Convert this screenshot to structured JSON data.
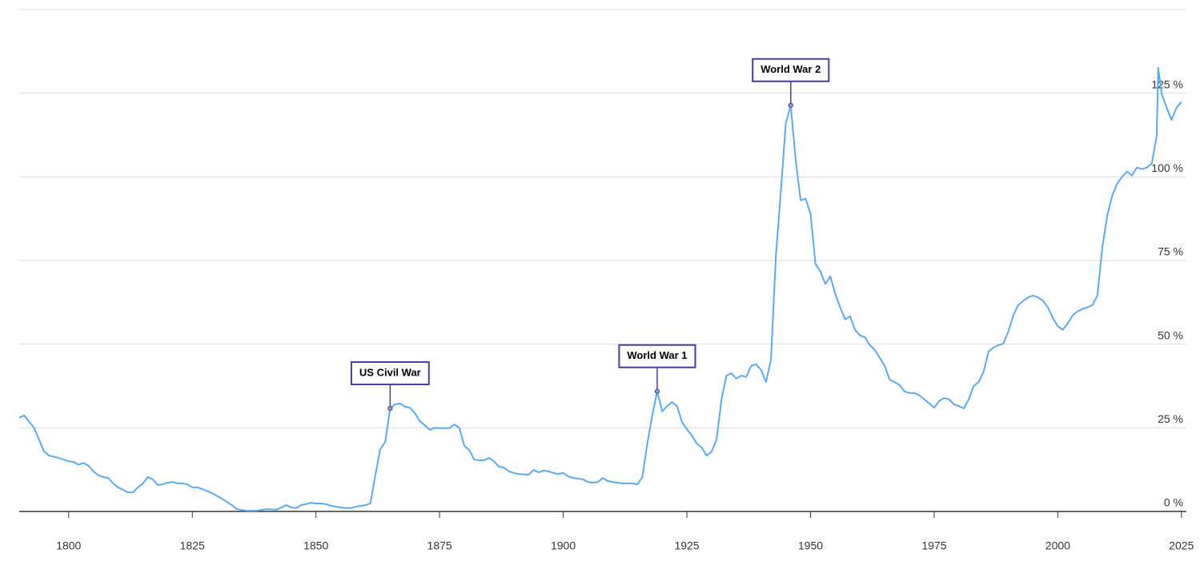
{
  "chart_data": {
    "type": "line",
    "x": [
      1790,
      1791,
      1793,
      1795,
      1796,
      1798,
      1800,
      1801,
      1802,
      1803,
      1804,
      1805,
      1806,
      1807,
      1808,
      1809,
      1810,
      1812,
      1813,
      1814,
      1815,
      1816,
      1817,
      1818,
      1819,
      1820,
      1821,
      1822,
      1823,
      1824,
      1825,
      1826,
      1827,
      1829,
      1831,
      1833,
      1834,
      1836,
      1838,
      1840,
      1842,
      1843,
      1844,
      1845,
      1846,
      1847,
      1848,
      1849,
      1850,
      1851,
      1852,
      1853,
      1855,
      1856,
      1857,
      1858,
      1860,
      1861,
      1862,
      1863,
      1864,
      1865,
      1866,
      1867,
      1868,
      1869,
      1870,
      1871,
      1872,
      1873,
      1874,
      1875,
      1876,
      1877,
      1878,
      1879,
      1880,
      1881,
      1882,
      1883,
      1884,
      1885,
      1886,
      1887,
      1888,
      1889,
      1890,
      1891,
      1893,
      1894,
      1895,
      1896,
      1897,
      1898,
      1899,
      1900,
      1901,
      1902,
      1904,
      1905,
      1906,
      1907,
      1908,
      1909,
      1910,
      1911,
      1912,
      1913,
      1914,
      1915,
      1916,
      1917,
      1918,
      1919,
      1920,
      1921,
      1922,
      1923,
      1924,
      1925,
      1926,
      1927,
      1928,
      1929,
      1930,
      1931,
      1932,
      1933,
      1934,
      1935,
      1936,
      1937,
      1938,
      1939,
      1940,
      1941,
      1942,
      1943,
      1944,
      1945,
      1946,
      1947,
      1948,
      1949,
      1950,
      1951,
      1952,
      1953,
      1954,
      1955,
      1956,
      1957,
      1958,
      1959,
      1960,
      1961,
      1962,
      1963,
      1964,
      1965,
      1966,
      1967,
      1968,
      1969,
      1970,
      1971,
      1972,
      1973,
      1974,
      1975,
      1976,
      1977,
      1978,
      1979,
      1980,
      1981,
      1982,
      1983,
      1984,
      1985,
      1986,
      1987,
      1988,
      1989,
      1990,
      1991,
      1992,
      1993,
      1994,
      1995,
      1996,
      1997,
      1998,
      1999,
      2000,
      2001,
      2002,
      2003,
      2004,
      2005,
      2006,
      2007,
      2008,
      2009,
      2010,
      2011,
      2012,
      2013,
      2014,
      2015,
      2016,
      2017,
      2018,
      2019,
      2020,
      2020.3,
      2021,
      2022,
      2023,
      2024,
      2025
    ],
    "series": [
      {
        "color": "#5aaaee",
        "values": [
          28,
          28.7,
          25,
          18,
          16.7,
          16,
          15,
          14.8,
          14,
          14.5,
          13.7,
          12,
          10.8,
          10.3,
          10,
          8.4,
          7.2,
          5.7,
          5.7,
          7.2,
          8.4,
          10.3,
          9.6,
          7.9,
          8.1,
          8.6,
          8.8,
          8.4,
          8.4,
          8.1,
          7.2,
          7.2,
          6.7,
          5.5,
          3.8,
          1.9,
          0.7,
          0.2,
          0.2,
          0.7,
          0.5,
          1.2,
          1.9,
          1.2,
          1,
          1.9,
          2.2,
          2.6,
          2.4,
          2.4,
          2.2,
          1.7,
          1.2,
          1,
          1,
          1.4,
          1.9,
          2.4,
          10.8,
          18.6,
          20.8,
          30.8,
          32,
          32.3,
          31.3,
          31,
          29.4,
          27,
          25.8,
          24.4,
          25,
          24.9,
          24.9,
          24.9,
          26,
          25,
          19.6,
          18.4,
          15.5,
          15.3,
          15.3,
          16,
          15,
          13.4,
          13.1,
          12,
          11.5,
          11.2,
          11,
          12.4,
          11.7,
          12.2,
          12,
          11.5,
          11.2,
          11.5,
          10.5,
          10,
          9.6,
          8.8,
          8.6,
          8.8,
          10,
          9.1,
          8.8,
          8.6,
          8.4,
          8.4,
          8.4,
          8.1,
          10.3,
          20.3,
          28.7,
          35.9,
          29.9,
          31.5,
          32.7,
          31.5,
          26.8,
          24.6,
          22.7,
          20.3,
          19.1,
          16.7,
          17.9,
          21.5,
          33.5,
          40.6,
          41.3,
          39.7,
          40.6,
          40.2,
          43.5,
          44,
          42.3,
          38.7,
          45.4,
          76.5,
          95.6,
          116,
          121.4,
          105,
          93,
          93.5,
          89,
          74,
          71.7,
          68,
          70.3,
          65,
          61,
          57.4,
          58.3,
          54.3,
          52.6,
          52.1,
          49.7,
          48.3,
          45.9,
          43.5,
          39.4,
          38.7,
          37.8,
          35.9,
          35.4,
          35.4,
          34.7,
          33.5,
          32.3,
          31,
          33,
          33.9,
          33.5,
          32,
          31.5,
          30.8,
          33.5,
          37.5,
          38.7,
          41.8,
          47.8,
          49,
          49.7,
          50.2,
          53.8,
          58.6,
          61.7,
          62.9,
          64,
          64.5,
          64,
          63,
          61,
          57.8,
          55.4,
          54.3,
          56.2,
          58.6,
          59.8,
          60.5,
          61,
          61.7,
          64.5,
          78.9,
          88.4,
          94.4,
          98,
          100,
          101.6,
          100.4,
          102.8,
          102.3,
          102.8,
          104,
          112.3,
          132.6,
          124.8,
          120.7,
          117,
          120.7,
          122.4
        ]
      }
    ],
    "xlim": [
      1790,
      2026
    ],
    "xticks": [
      1800,
      1825,
      1850,
      1875,
      1900,
      1925,
      1950,
      1975,
      2000,
      2025
    ],
    "ylim": [
      0,
      150
    ],
    "yticks": [
      {
        "value": 0,
        "label": "0 %"
      },
      {
        "value": 25,
        "label": "25 %"
      },
      {
        "value": 50,
        "label": "50 %"
      },
      {
        "value": 75,
        "label": "75 %"
      },
      {
        "value": 100,
        "label": "100 %"
      },
      {
        "value": 125,
        "label": "125 %"
      }
    ],
    "grid": true,
    "annotations": [
      {
        "label": "US Civil War",
        "x": 1865,
        "value": 30.8
      },
      {
        "label": "World War 1",
        "x": 1919,
        "value": 35.9
      },
      {
        "label": "World War 2",
        "x": 1946,
        "value": 121.4
      }
    ]
  }
}
